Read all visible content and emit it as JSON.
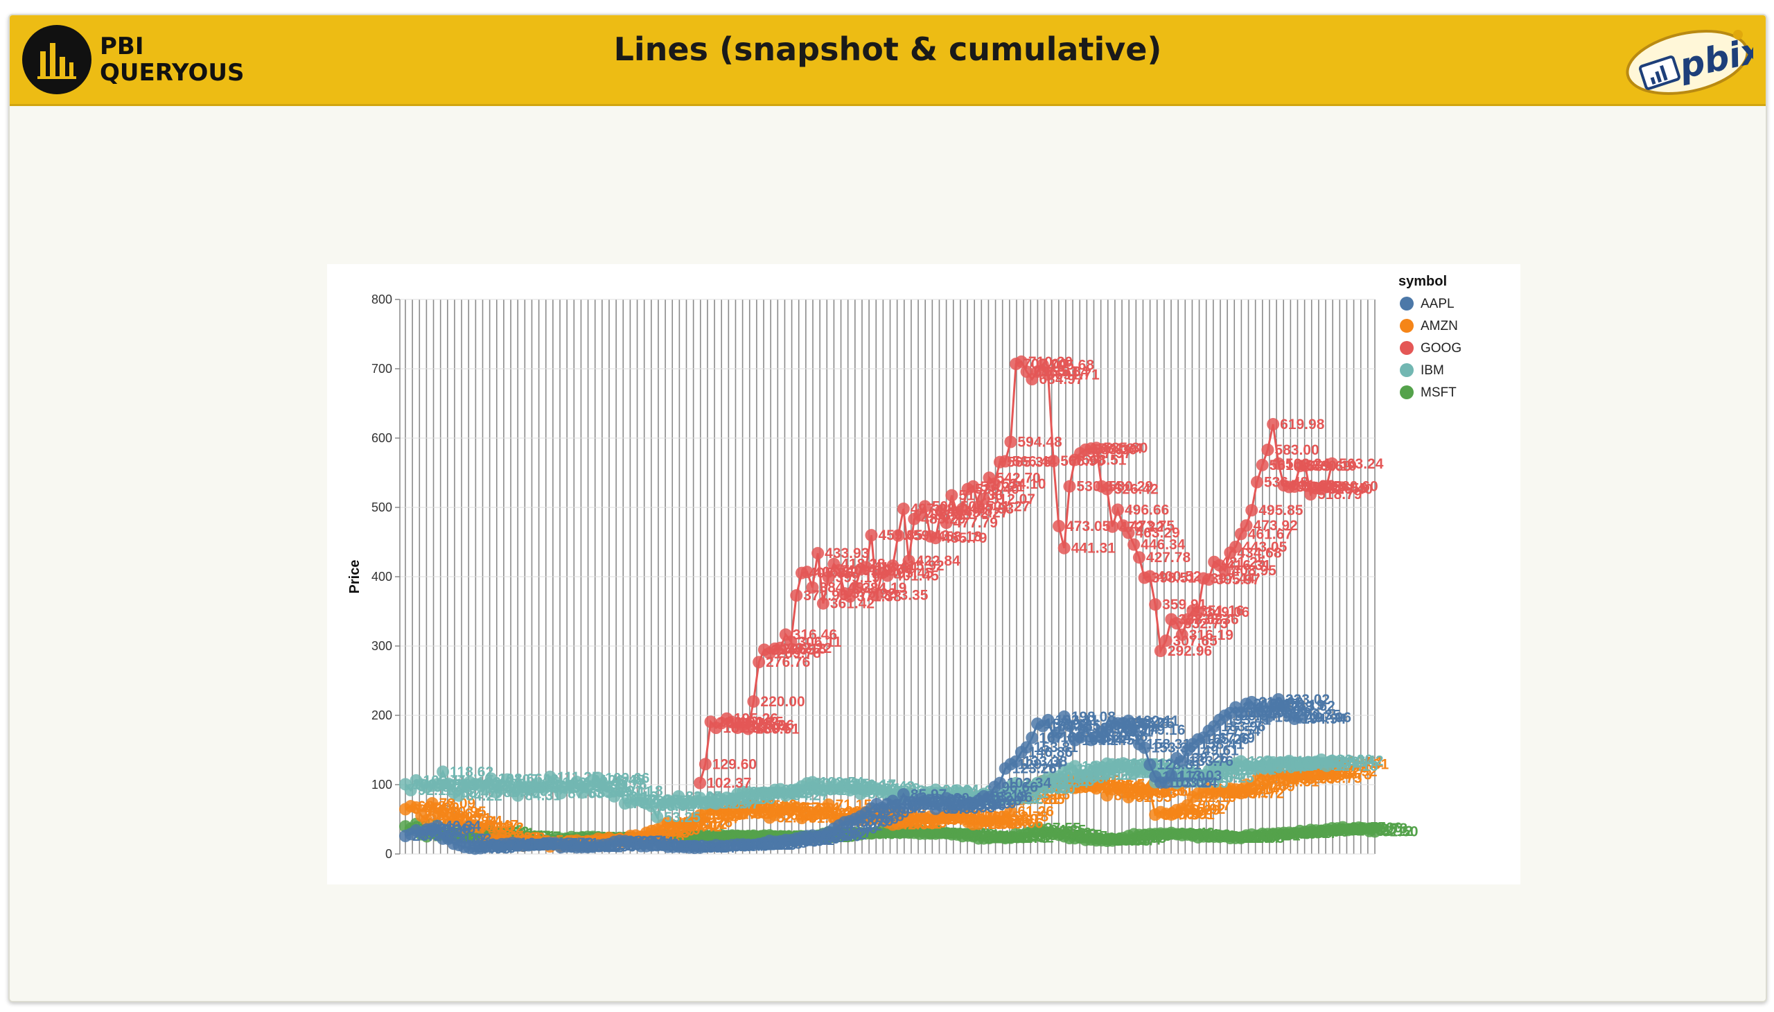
{
  "header": {
    "logo_line1": "PBI",
    "logo_line2": "QUERYOUS",
    "title": "Lines (snapshot & cumulative)",
    "right_logo_text": "pbix",
    "accent_color": "#edbc14"
  },
  "chart_data": {
    "type": "line",
    "title": "",
    "xlabel": "",
    "ylabel": "Price",
    "ylim": [
      0,
      800
    ],
    "yticks": [
      0,
      100,
      200,
      300,
      400,
      500,
      600,
      700,
      800
    ],
    "x_grid": true,
    "legend": {
      "title": "symbol",
      "position": "top-right"
    },
    "series": [
      {
        "name": "AAPL",
        "color": "#4c78a8",
        "values": [
          25.94,
          28.66,
          33.95,
          31.01,
          35.36,
          36.46,
          40.34,
          22.12,
          21.93,
          14.8,
          12.88,
          10.09,
          8.9,
          7.68,
          8.33,
          10.27,
          11.76,
          12.2,
          14.17,
          14.55,
          16.06,
          14.66,
          11.94,
          12.48,
          13.26,
          13.31,
          15.1,
          15.78,
          15.61,
          9.62,
          10.73,
          10.66,
          9.53,
          9.81,
          9.72,
          10.35,
          12.2,
          13.25,
          14.18,
          17.32,
          18.87,
          18.51,
          17.44,
          14.96,
          11.32,
          11.29,
          12.33,
          12.52,
          13.12,
          10.36,
          10.19,
          10.56,
          9.93,
          9.36,
          8.83,
          9.14,
          10.58,
          10.77,
          12.64,
          11.44,
          11.45,
          12.72,
          13.67,
          13.8,
          13.21,
          12.99,
          14.38,
          15.98,
          18.88,
          17.68,
          18.26,
          20.25,
          20.01,
          22.25,
          24.18,
          25.73,
          26.57,
          25.4,
          28.02,
          31.07,
          36.46,
          41.22,
          45.76,
          47.26,
          50.56,
          54.28,
          59.39,
          65.68,
          71.97,
          66.42,
          72.05,
          76.44,
          70.61,
          85.97,
          74.44,
          69.96,
          78.83,
          76.61,
          75.59,
          65.09,
          69.69,
          80.4,
          66.88,
          71.38,
          69.86,
          72.4,
          73.19,
          77.2,
          83.18,
          82.06,
          96.66,
          102.34,
          123.26,
          129.44,
          133.38,
          146.86,
          153.81,
          167.68,
          187.92,
          184.51,
          193.11,
          168.59,
          175.11,
          198.08,
          185.0,
          164.14,
          168.14,
          182.1,
          164.52,
          169.56,
          176.31,
          180.74,
          189.52,
          188.48,
          188.75,
          192.11,
          179.16,
          158.31,
          153.35,
          128.81,
          111.7,
          103.05,
          103.24,
          113.03,
          138.26,
          133.76,
          149.61,
          158.41,
          165.26,
          167.69,
          177.54,
          183.96,
          193.41,
          199.54,
          203.28,
          211.48,
          204.0,
          216.45,
          219.03,
          206.41,
          211.98,
          197.72,
          215.19,
          223.02,
          213.62,
          200.35,
          194.94,
          197.06
        ]
      },
      {
        "name": "AMZN",
        "color": "#f58518",
        "values": [
          64.56,
          68.87,
          67.0,
          55.19,
          48.62,
          73.09,
          58.64,
          60.95,
          51.71,
          46.84,
          47.34,
          37.73,
          40.12,
          41.47,
          38.12,
          19.35,
          21.11,
          23.87,
          23.33,
          19.63,
          16.27,
          14.45,
          11.81,
          19.58,
          17.63,
          15.9,
          14.37,
          10.85,
          16.02,
          11.55,
          14.03,
          18.72,
          19.38,
          16.52,
          18.56,
          18.83,
          22.06,
          20.62,
          23.3,
          19.97,
          21.37,
          19.9,
          26.04,
          26.59,
          24.73,
          30.45,
          33.29,
          34.99,
          41.57,
          45.68,
          40.6,
          39.42,
          43.12,
          45.26,
          51.44,
          55.83,
          57.41,
          64.94,
          63.41,
          60.31,
          57.52,
          66.29,
          70.05,
          58.47,
          65.25,
          71.02,
          62.09,
          67.63,
          52.44,
          56.22,
          61.24,
          66.72,
          65.9,
          67.14,
          51.87,
          56.82,
          56.66,
          61.3,
          59.02,
          71.15,
          51.35,
          46.74,
          49.91,
          50.91,
          57.77,
          57.99,
          60.52,
          52.32,
          54.01,
          59.92,
          45.52,
          42.36,
          43.52,
          45.25,
          49.93,
          51.24,
          50.24,
          51.76,
          53.75,
          49.15,
          51.25,
          56.41,
          56.11,
          54.16,
          55.2,
          46.34,
          42.96,
          43.65,
          47.71,
          47.96,
          50.6,
          44.66,
          53.78,
          61.26,
          79.21,
          78.85,
          85.56,
          95.88,
          95.21,
          105.25,
          104.69,
          108.87,
          101.19,
          103.77,
          106.16,
          95.24,
          96.42,
          97.66,
          98.45,
          94.58,
          100.54,
          84.53,
          93.37,
          95.32,
          89.44,
          81.95,
          87.93,
          97.34,
          90.56,
          91.01,
          56.73,
          60.4,
          57.91,
          56.91,
          63.29,
          65.02,
          70.17,
          82.16,
          87.15,
          88.85,
          94.08,
          86.95,
          91.5,
          88.71,
          94.23,
          93.14,
          87.72,
          99.99,
          97.69,
          107.46,
          115.68,
          104.31,
          114.22,
          119.12,
          108.63,
          113.06,
          112.93,
          114.96,
          116.39,
          109.75,
          124.83,
          114.73,
          118.92,
          132.51,
          129.31
        ]
      },
      {
        "name": "GOOG",
        "color": "#e45756",
        "values": [
          102.37,
          129.6,
          190.64,
          181.98,
          188.75,
          195.26,
          190.35,
          182.04,
          185.96,
          180.51,
          220.0,
          276.76,
          294.65,
          289.78,
          296.18,
          297.22,
          316.46,
          306.11,
          372.95,
          405.36,
          406.82,
          384.49,
          433.93,
          361.42,
          399.19,
          418.28,
          409.19,
          375.92,
          371.38,
          384.19,
          410.64,
          413.64,
          459.85,
          373.35,
          405.45,
          401.45,
          415.92,
          459.43,
          497.98,
          422.84,
          483.29,
          488.83,
          501.5,
          458.18,
          455.79,
          494.78,
          477.79,
          517.36,
          492.27,
          497.93,
          526.4,
          530.21,
          501.27,
          512.07,
          542.7,
          534.1,
          565.35,
          566.44,
          594.48,
          707.0,
          710.2,
          695.81,
          684.97,
          695.84,
          705.68,
          691.71,
          566.9,
          473.05,
          441.31,
          530.34,
          568.51,
          577.97,
          583.3,
          584.84,
          585.8,
          530.29,
          526.42,
          472.22,
          496.66,
          473.75,
          463.29,
          446.34,
          427.78,
          398.51,
          400.52,
          359.91,
          292.96,
          307.65,
          338.53,
          332.73,
          316.19,
          338.36,
          351.16,
          349.06,
          397.44,
          395.97,
          421.25,
          416.31,
          408.95,
          434.68,
          443.05,
          461.67,
          473.92,
          495.85,
          536.48,
          561.18,
          583.0,
          619.98,
          563.24,
          531.82,
          529.45,
          529.98,
          559.69,
          560.19,
          518.79,
          527.55,
          526.4,
          530.6,
          563.24
        ]
      },
      {
        "name": "IBM",
        "color": "#72b7b2",
        "values": [
          100.52,
          92.11,
          106.11,
          99.95,
          96.31,
          98.33,
          100.74,
          118.62,
          101.19,
          88.47,
          84.22,
          97.82,
          103.64,
          100.93,
          98.68,
          94.8,
          108.66,
          88.78,
          94.38,
          107.43,
          90.67,
          84.31,
          96.26,
          97.24,
          96.72,
          99.45,
          95.07,
          111.25,
          103.19,
          87.63,
          95.44,
          98.22,
          103.97,
          88.56,
          96.11,
          106.45,
          109.66,
          99.76,
          89.41,
          83.16,
          91.18,
          72.91,
          74.48,
          77.85,
          76.65,
          72.65,
          68.92,
          53.25,
          71.67,
          77.2,
          71.86,
          83.05,
          72.57,
          73.88,
          75.45,
          80.77,
          72.69,
          77.56,
          72.47,
          78.91,
          81.14,
          78.89,
          86.53,
          89.51,
          88.84,
          85.61,
          87.39,
          88.5,
          88.03,
          92.39,
          93.43,
          84.27,
          91.26,
          92.94,
          97.56,
          101.92,
          103.54,
          100.85,
          91.85,
          95.52,
          97.75,
          93.8,
          100.17,
          91.9,
          94.23,
          86.8,
          90.87,
          97.42,
          94.38,
          91.43,
          85.74,
          81.11,
          77.24,
          86.18,
          83.26,
          84.61,
          83.44,
          88.77,
          89.3,
          92.64,
          81.7,
          81.71,
          84.92,
          91.61,
          86.93,
          81.25,
          80.04,
          83.14,
          86.69,
          78.49,
          79.69,
          79.62,
          88.21,
          97.7,
          102.13,
          96.32,
          93.39,
          93.9,
          102.34,
          105.18,
          110.09,
          108.86,
          111.74,
          120.91,
          122.91,
          126.6,
          114.11,
          114.22,
          119.6,
          125.77,
          123.46,
          130.37,
          129.21,
          128.55,
          130.69,
          124.57,
          116.43,
          118.51,
          121.87,
          118.21,
          103.55,
          114.75,
          112.88,
          110.59,
          102.55,
          110.26,
          116.06,
          113.79,
          114.37,
          110.25,
          120.27,
          126.23,
          126.84,
          121.52,
          127.39,
          130.67,
          133.6,
          127.49,
          123.64,
          125.86,
          127.21,
          133.25,
          132.12,
          130.24,
          131.76,
          134.17,
          127.76,
          129.83,
          131.34,
          131.71,
          132.91,
          136.0,
          127.18,
          134.42
        ]
      },
      {
        "name": "MSFT",
        "color": "#54a24b",
        "values": [
          39.81,
          36.35,
          43.22,
          28.37,
          25.45,
          32.54,
          28.4,
          28.4,
          24.53,
          28.02,
          26.37,
          23.73,
          25.12,
          31.56,
          34.05,
          32.02,
          29.81,
          25.59,
          26.41,
          25.77,
          25.61,
          25.17,
          20.36,
          20.18,
          18.82,
          18.31,
          18.17,
          20.15,
          22.27,
          21.88,
          22.08,
          24.42,
          23.07,
          24.09,
          24.67,
          24.64,
          24.08,
          22.49,
          22.08,
          22.44,
          23.15,
          22.12,
          22.81,
          22.26,
          21.71,
          22.65,
          24.41,
          26.25,
          26.15,
          26.19,
          24.85,
          24.64,
          25.36,
          25.46,
          25.91,
          26.59,
          26.39,
          25.97,
          26.64,
          27.0,
          25.8,
          26.59,
          26.24,
          25.61,
          25.96,
          26.34,
          24.67,
          26.47,
          26.84,
          25.21,
          24.71,
          24.43,
          23.22,
          23.45,
          24.42,
          24.12,
          24.53,
          26.25,
          28.86,
          31.31,
          30.75,
          31.05,
          29.82,
          29.39,
          30.22,
          28.5,
          29.68,
          29.6,
          31.44,
          34.68,
          32.46,
          34.49,
          34.19,
          31.66,
          30.79,
          30.44,
          29.22,
          29.4,
          29.47,
          29.29,
          30.37,
          29.93,
          28.43,
          28.11,
          25.73,
          26.41,
          25.55,
          22.43,
          22.43,
          22.91,
          24.53,
          24.7,
          22.78,
          23.32,
          29.46,
          26.86,
          30.32,
          32.51,
          37.55,
          34.35,
          30.42,
          29.09,
          27.55,
          25.47,
          22.83,
          22.63,
          23.63,
          20.27,
          20.86,
          19.62,
          19.79,
          18.98,
          19.37,
          20.74,
          22.85,
          25.85,
          28.45,
          27.43,
          27.44,
          28.63,
          28.72,
          29.49,
          28.74,
          30.43,
          28.51,
          27.19,
          28.03,
          26.5,
          24.04,
          25.31,
          25.09,
          24.97,
          24.64,
          25.68,
          22.99,
          23.04,
          22.93,
          26.61,
          28.03,
          26.31,
          29.0,
          28.73,
          28.95,
          29.73,
          30.39,
          30.68,
          30.17,
          33.11,
          31.96,
          34.67,
          33.92,
          33.52,
          35.29,
          37.01,
          36.86,
          38.55,
          34.61,
          35.75,
          38.06,
          36.78,
          33.12,
          32.5
        ]
      }
    ],
    "series_start_index": {
      "AAPL": 0,
      "AMZN": 0,
      "GOOG": 55,
      "IBM": 0,
      "MSFT": 0
    },
    "data_label_decimals": 2
  }
}
